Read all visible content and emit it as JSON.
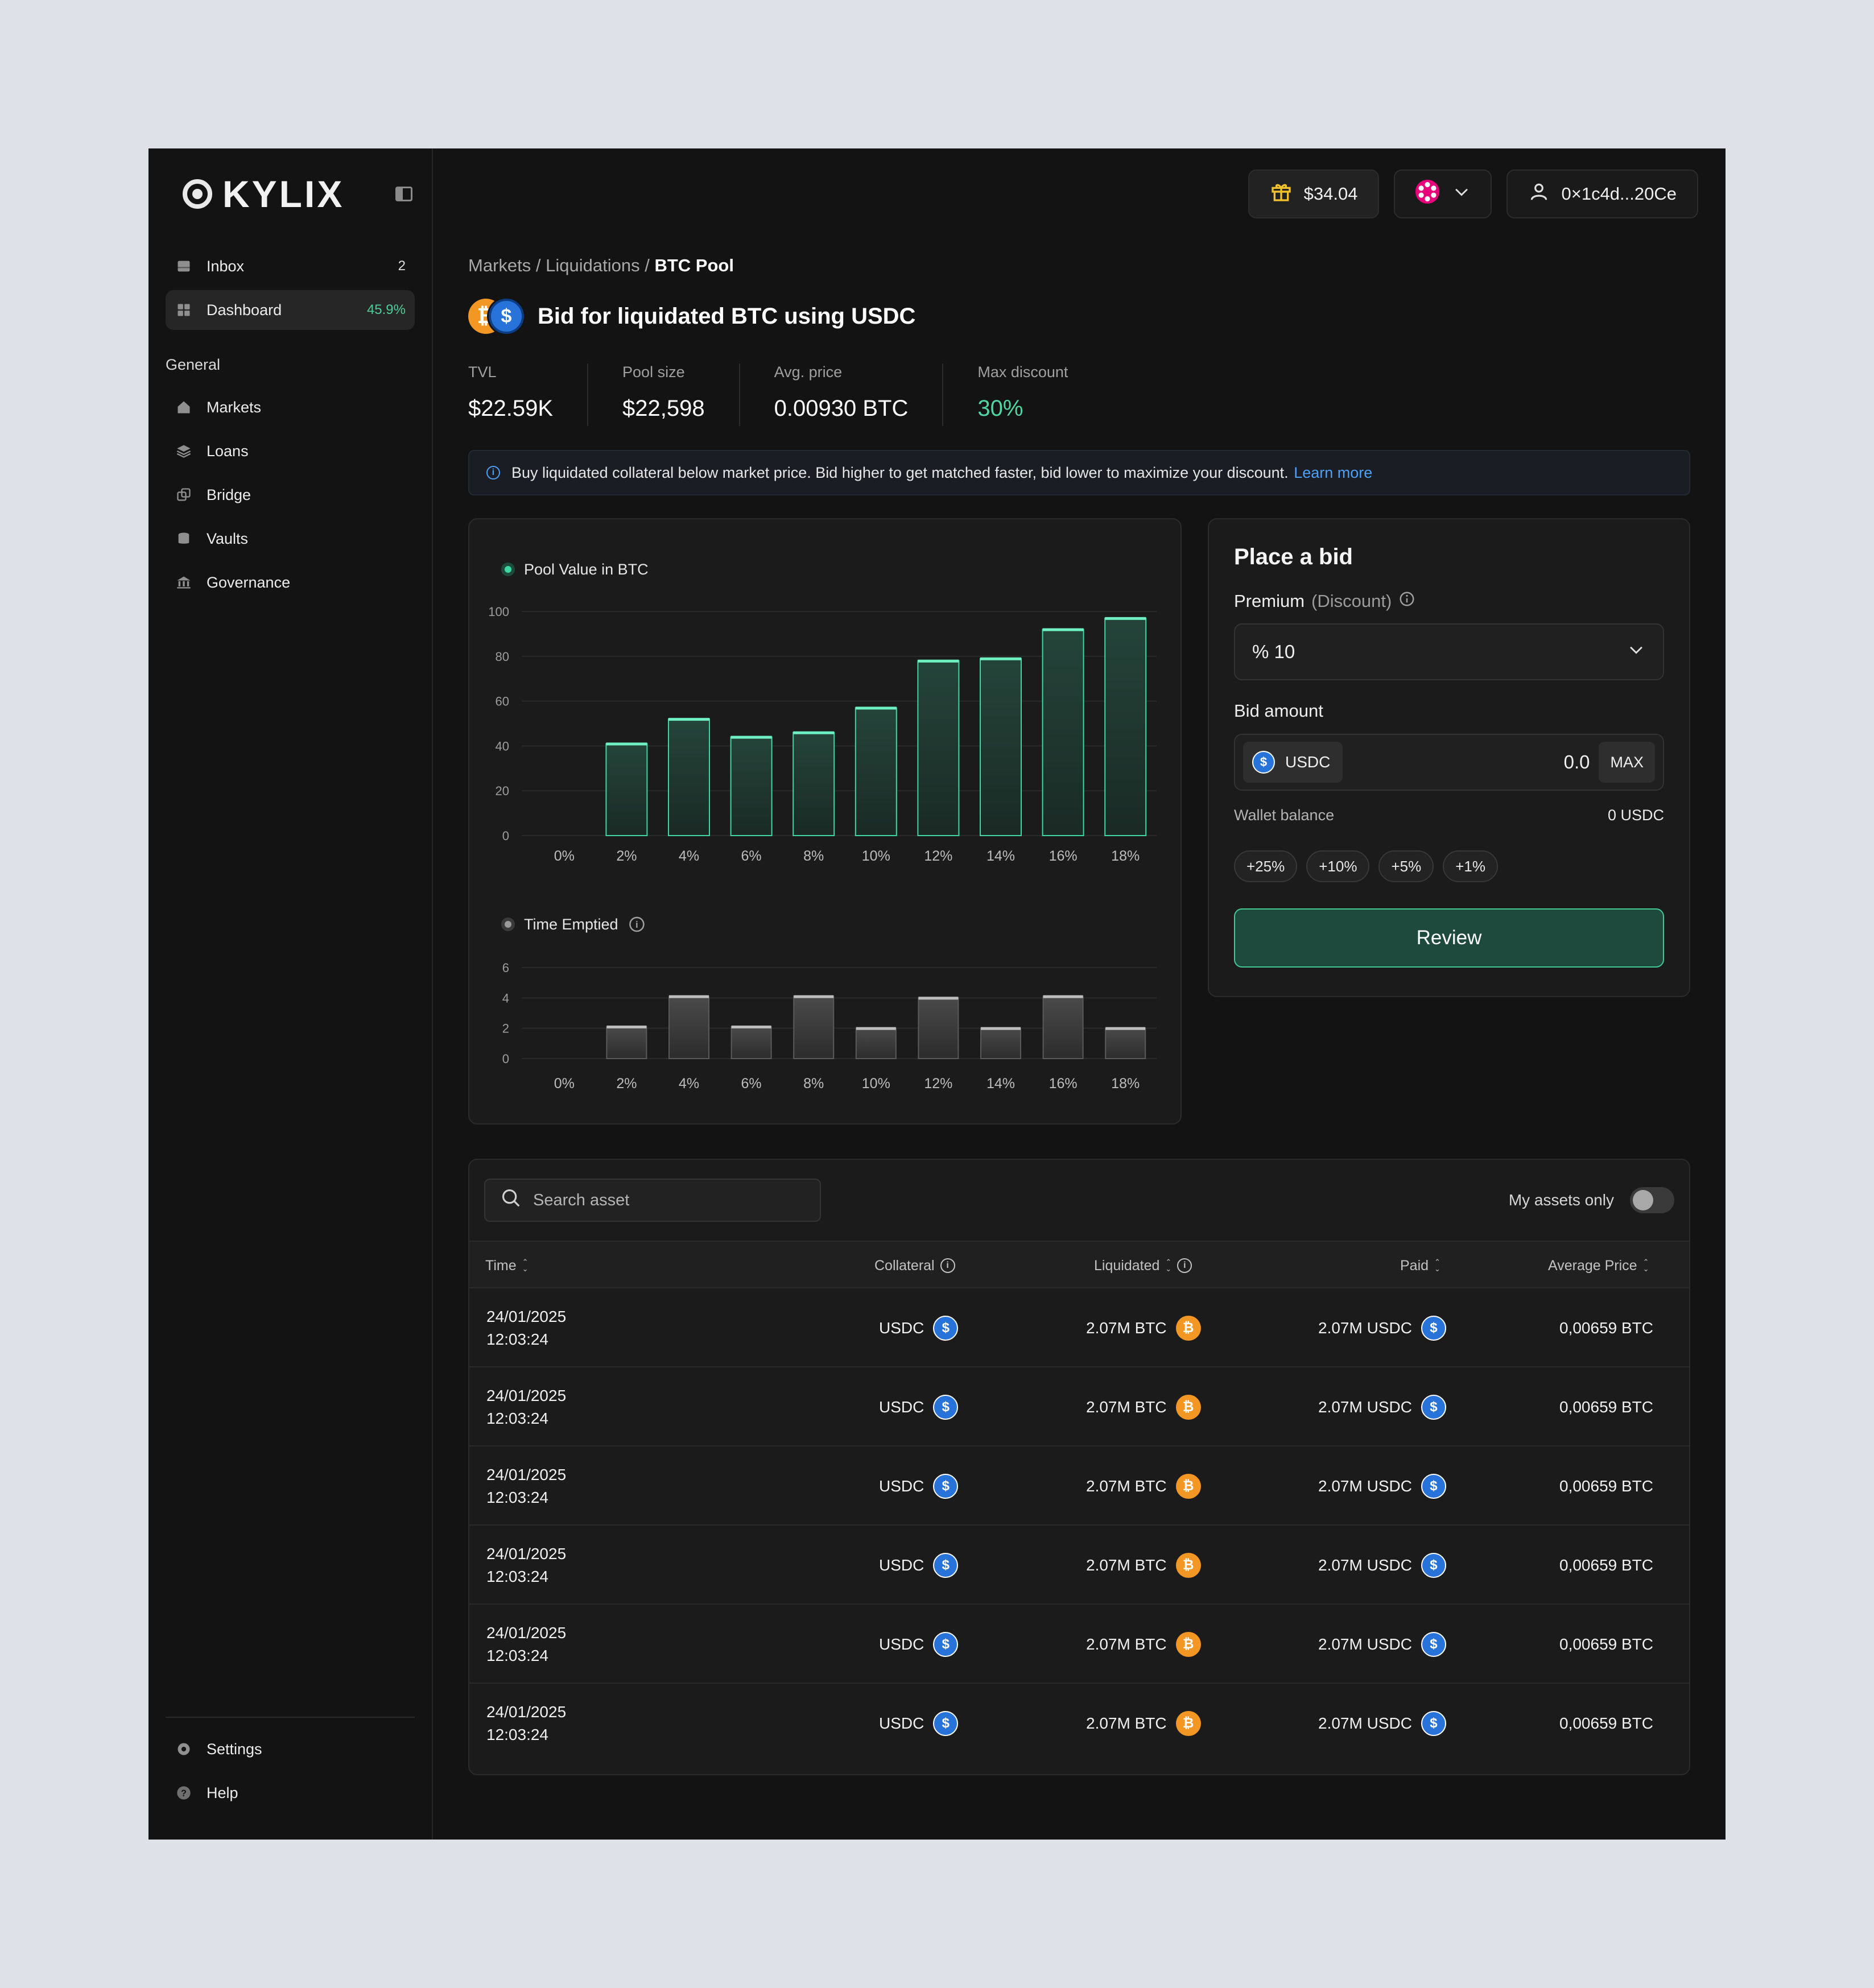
{
  "brand": {
    "name": "KYLIX"
  },
  "sidebar": {
    "top_items": [
      {
        "label": "Inbox",
        "badge": "2",
        "icon": "inbox-icon"
      },
      {
        "label": "Dashboard",
        "badge": "45.9%",
        "icon": "grid-icon"
      }
    ],
    "section_label": "General",
    "items": [
      {
        "label": "Markets",
        "icon": "home-icon"
      },
      {
        "label": "Loans",
        "icon": "layers-icon"
      },
      {
        "label": "Bridge",
        "icon": "bridge-icon"
      },
      {
        "label": "Vaults",
        "icon": "database-icon"
      },
      {
        "label": "Governance",
        "icon": "bank-icon"
      }
    ],
    "bottom_items": [
      {
        "label": "Settings",
        "icon": "gear-icon"
      },
      {
        "label": "Help",
        "icon": "help-icon"
      }
    ]
  },
  "topbar": {
    "rewards": "$34.04",
    "wallet": "0×1c4d...20Ce",
    "network_icon": "polkadot-icon"
  },
  "breadcrumb": {
    "markets": "Markets",
    "liquidations": "Liquidations",
    "current": "BTC Pool",
    "sep": "/"
  },
  "title": "Bid for liquidated BTC using USDC",
  "stats": [
    {
      "label": "TVL",
      "value": "$22.59K"
    },
    {
      "label": "Pool size",
      "value": "$22,598"
    },
    {
      "label": "Avg. price",
      "value": "0.00930 BTC"
    },
    {
      "label": "Max discount",
      "value": "30%"
    }
  ],
  "banner": {
    "text": "Buy liquidated collateral below market price. Bid higher to get matched faster, bid lower to maximize your discount.",
    "link": "Learn more"
  },
  "chart_data": [
    {
      "type": "bar",
      "title": "Pool Value in BTC",
      "categories": [
        "0%",
        "2%",
        "4%",
        "6%",
        "8%",
        "10%",
        "12%",
        "14%",
        "16%",
        "18%"
      ],
      "values": [
        0,
        41,
        52,
        44,
        46,
        57,
        78,
        79,
        92,
        97
      ],
      "ylim": [
        0,
        100
      ],
      "yticks": [
        "0",
        "20",
        "40",
        "60",
        "80",
        "100"
      ],
      "color": "#3fd6a2"
    },
    {
      "type": "bar",
      "title": "Time Emptied",
      "categories": [
        "0%",
        "2%",
        "4%",
        "6%",
        "8%",
        "10%",
        "12%",
        "14%",
        "16%",
        "18%"
      ],
      "values": [
        0,
        2.1,
        4.1,
        2.1,
        4.1,
        2.0,
        4.0,
        2.0,
        4.1,
        2.0
      ],
      "ylim": [
        0,
        6
      ],
      "yticks": [
        "0",
        "2",
        "4",
        "6"
      ],
      "color": "#9a9a9a"
    }
  ],
  "bid": {
    "title": "Place a bid",
    "premium_label": "Premium",
    "premium_muted": "(Discount)",
    "premium_value": "% 10",
    "amount_label": "Bid amount",
    "token": "USDC",
    "amount": "0.0",
    "max": "MAX",
    "wallet_label": "Wallet balance",
    "wallet_value": "0 USDC",
    "chips": [
      "+25%",
      "+10%",
      "+5%",
      "+1%"
    ],
    "review": "Review"
  },
  "table": {
    "search_placeholder": "Search asset",
    "toggle_label": "My assets only",
    "headers": {
      "time": "Time",
      "collateral": "Collateral",
      "liquidated": "Liquidated",
      "paid": "Paid",
      "avg": "Average Price"
    },
    "rows": [
      {
        "date": "24/01/2025",
        "time": "12:03:24",
        "collateral": "USDC",
        "liquidated": "2.07M BTC",
        "paid": "2.07M USDC",
        "avg": "0,00659 BTC"
      },
      {
        "date": "24/01/2025",
        "time": "12:03:24",
        "collateral": "USDC",
        "liquidated": "2.07M BTC",
        "paid": "2.07M USDC",
        "avg": "0,00659 BTC"
      },
      {
        "date": "24/01/2025",
        "time": "12:03:24",
        "collateral": "USDC",
        "liquidated": "2.07M BTC",
        "paid": "2.07M USDC",
        "avg": "0,00659 BTC"
      },
      {
        "date": "24/01/2025",
        "time": "12:03:24",
        "collateral": "USDC",
        "liquidated": "2.07M BTC",
        "paid": "2.07M USDC",
        "avg": "0,00659 BTC"
      },
      {
        "date": "24/01/2025",
        "time": "12:03:24",
        "collateral": "USDC",
        "liquidated": "2.07M BTC",
        "paid": "2.07M USDC",
        "avg": "0,00659 BTC"
      },
      {
        "date": "24/01/2025",
        "time": "12:03:24",
        "collateral": "USDC",
        "liquidated": "2.07M BTC",
        "paid": "2.07M USDC",
        "avg": "0,00659 BTC"
      }
    ]
  }
}
